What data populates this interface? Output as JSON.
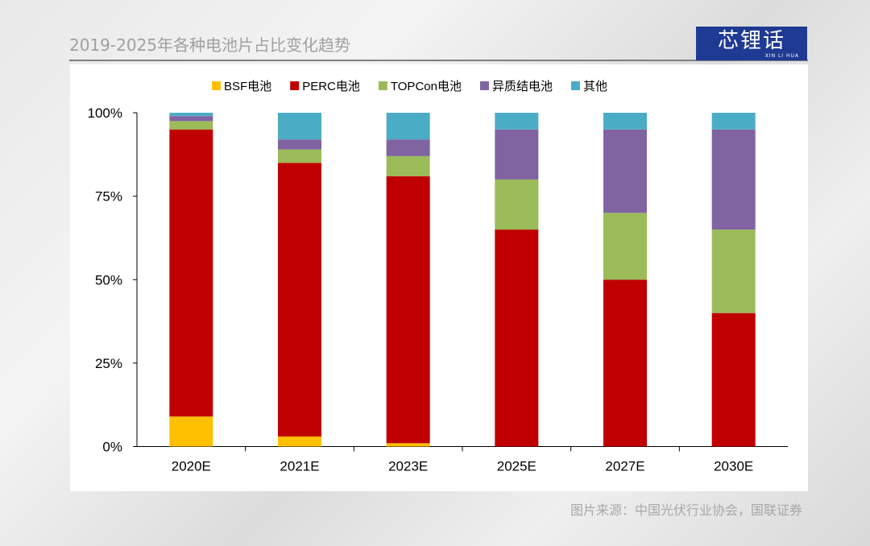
{
  "title": "2019-2025年各种电池片占比变化趋势",
  "logo": {
    "text": "芯锂话",
    "subtext": "XIN LI HUA"
  },
  "source": "图片来源：中国光伏行业协会，国联证券",
  "chart_data": {
    "type": "bar",
    "stacked": true,
    "categories": [
      "2020E",
      "2021E",
      "2023E",
      "2025E",
      "2027E",
      "2030E"
    ],
    "ylim": [
      0,
      100
    ],
    "yticks": [
      "0%",
      "25%",
      "50%",
      "75%",
      "100%"
    ],
    "legend_position": "top",
    "grid": false,
    "series": [
      {
        "name": "BSF电池",
        "color": "#ffc000",
        "values": [
          9,
          3,
          1,
          0,
          0,
          0
        ]
      },
      {
        "name": "PERC电池",
        "color": "#c00000",
        "values": [
          86,
          82,
          80,
          65,
          50,
          40
        ]
      },
      {
        "name": "TOPCon电池",
        "color": "#9bbb59",
        "values": [
          2.5,
          4,
          6,
          15,
          20,
          25
        ]
      },
      {
        "name": "异质结电池",
        "color": "#8064a2",
        "values": [
          1.5,
          3,
          5,
          15,
          25,
          30
        ]
      },
      {
        "name": "其他",
        "color": "#4bacc6",
        "values": [
          1,
          8,
          8,
          5,
          5,
          5
        ]
      }
    ]
  }
}
